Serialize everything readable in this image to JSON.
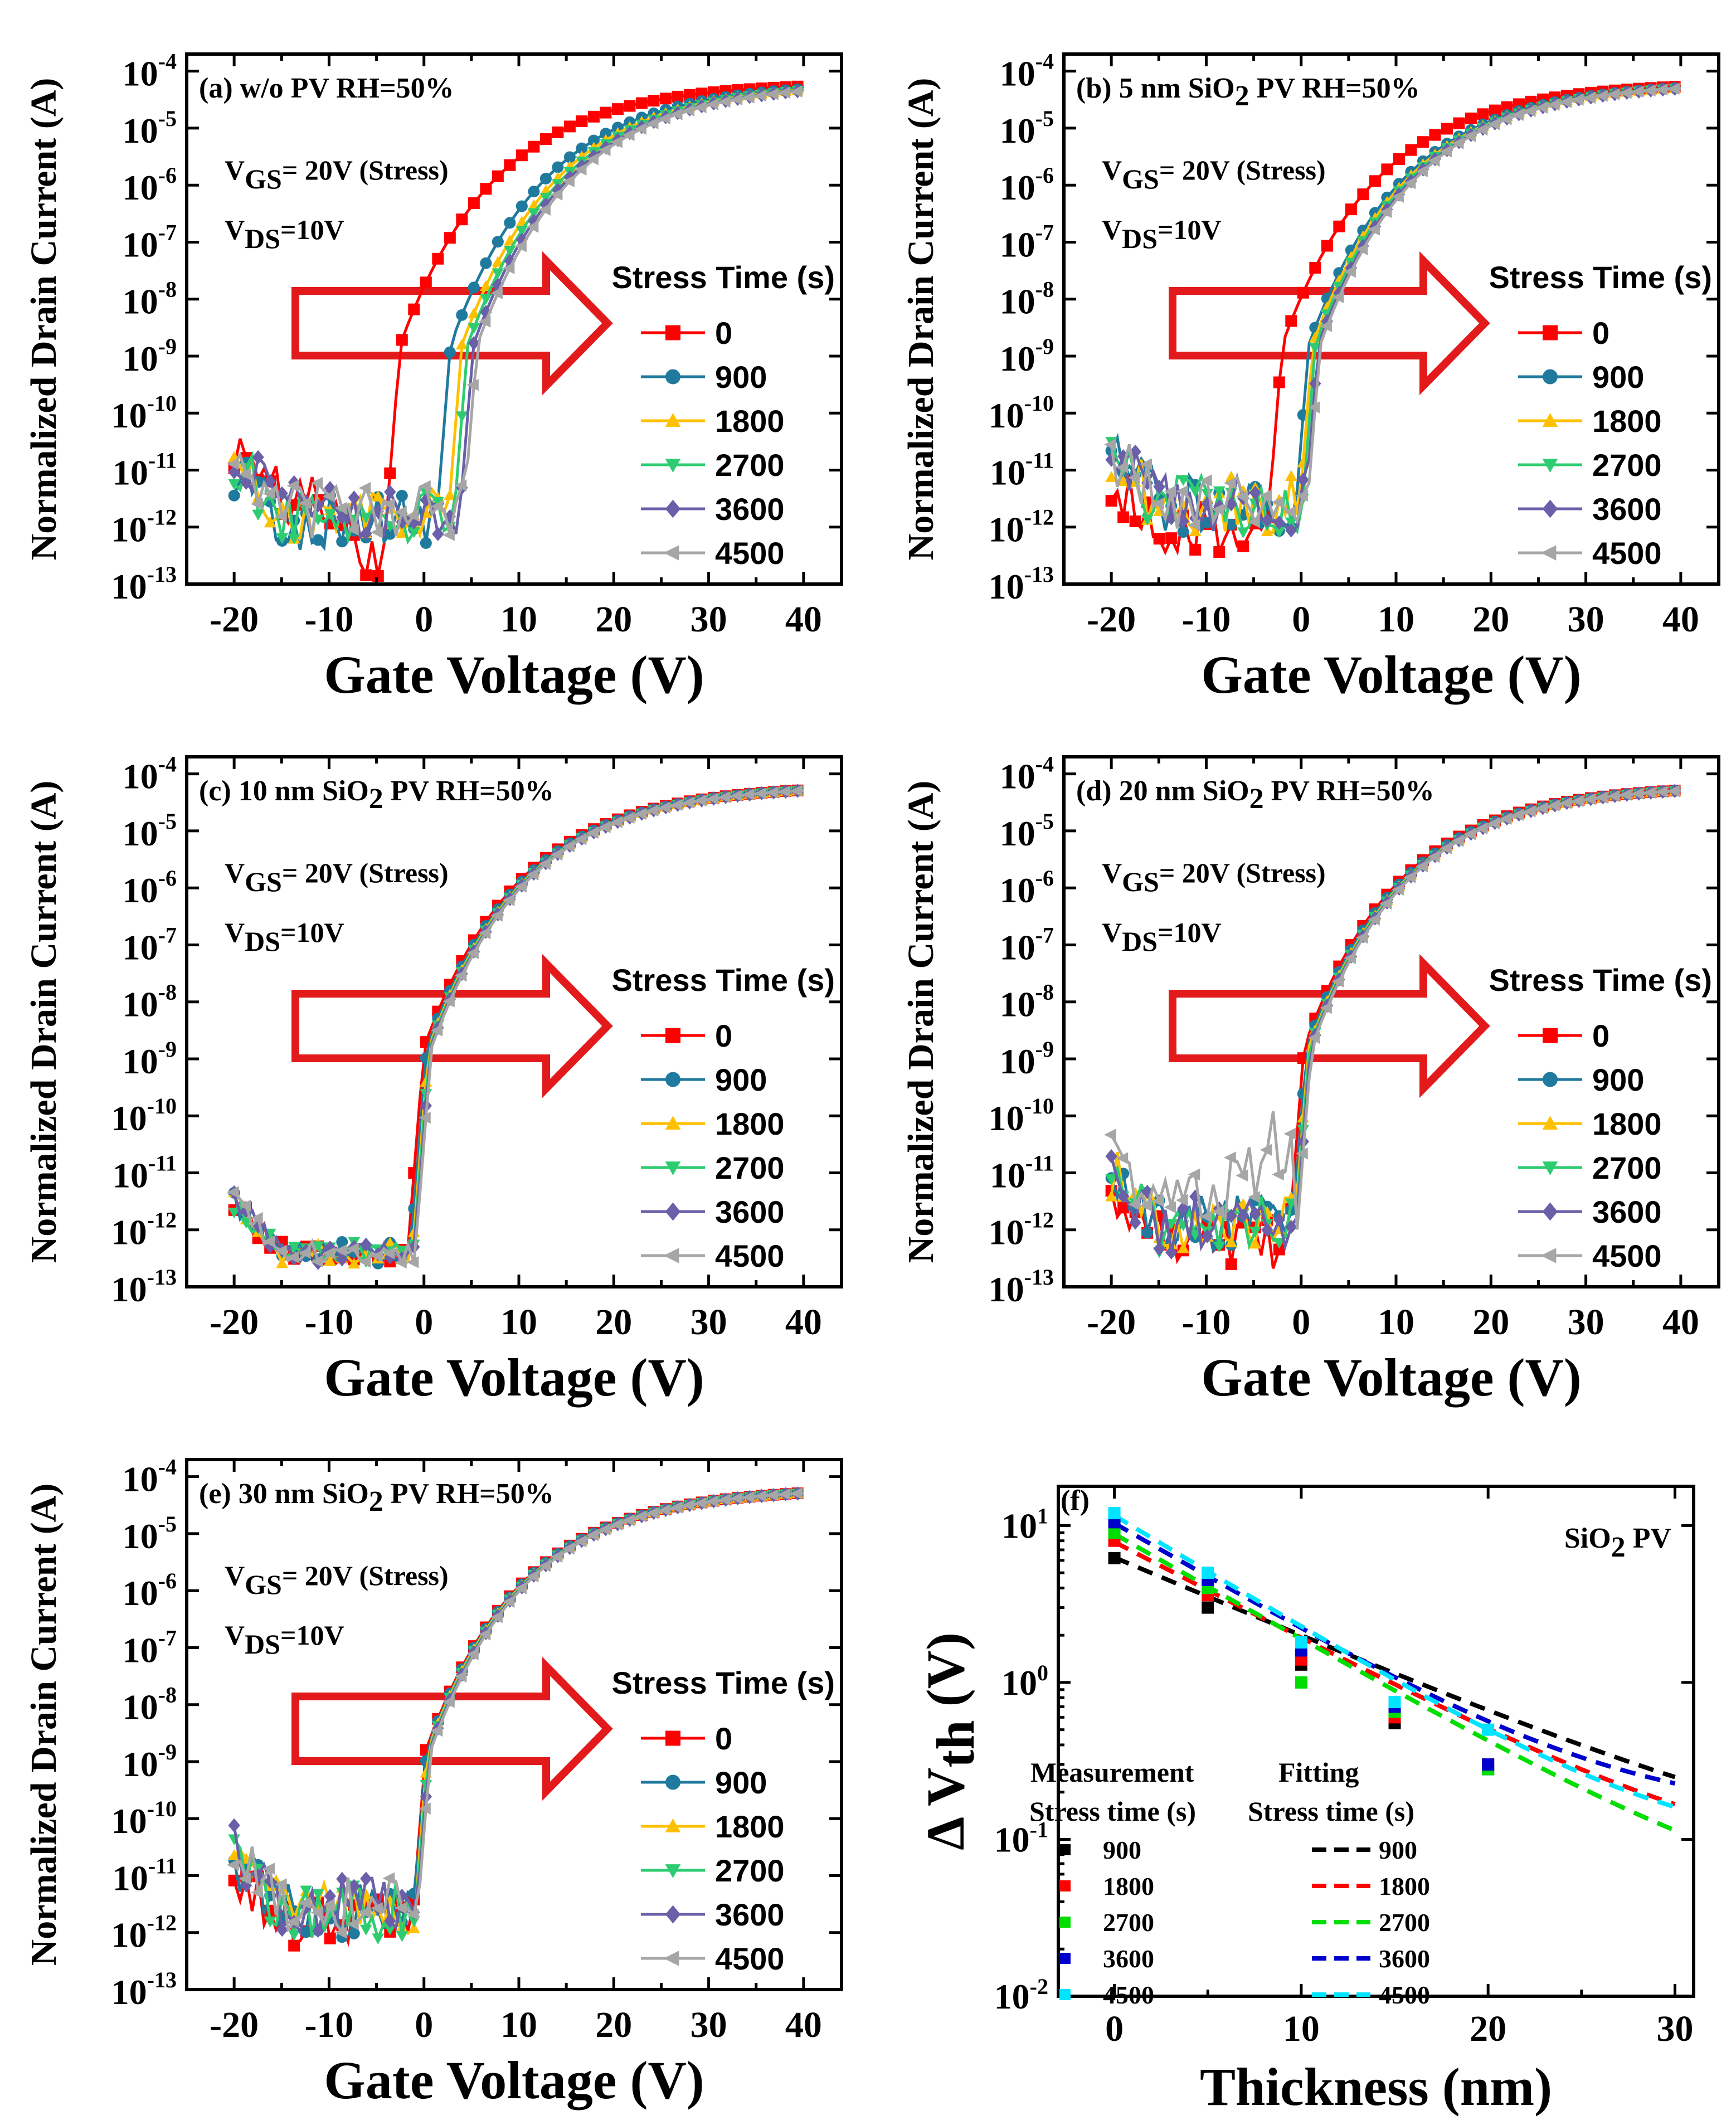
{
  "figure": {
    "y_axis_label": "Normalized Drain Current (A)",
    "x_axis_label": "Gate Voltage (V)",
    "legend_title": "Stress Time (s)",
    "vgs_base": "V",
    "vgs_sub": "GS",
    "vgs_rest": "= 20V (Stress)",
    "vds_base": "V",
    "vds_sub": "DS",
    "vds_rest": "=10V",
    "y_tick_base": "10",
    "series_colors": [
      "#ff0000",
      "#1f7a9e",
      "#ffc000",
      "#2ecc71",
      "#6a5fa8",
      "#a6a6a6"
    ],
    "arrow_color": "#e31a1c"
  },
  "chart_data": [
    {
      "type": "line",
      "panel": "(a)",
      "title_parts": [
        "w/o PV  RH=50%"
      ],
      "title": "(a) w/o PV  RH=50%",
      "xlabel": "Gate Voltage (V)",
      "ylabel": "Normalized Drain Current (A)",
      "y_scale": "log",
      "xlim": [
        -25,
        44
      ],
      "ylim_exp": [
        -13,
        -3.7
      ],
      "x_ticks": [
        "-20",
        "-10",
        "0",
        "10",
        "20",
        "30",
        "40"
      ],
      "y_tick_exponents": [
        "-4",
        "-5",
        "-6",
        "-7",
        "-8",
        "-9",
        "-10",
        "-11",
        "-12",
        "-13"
      ],
      "legend": [
        "0",
        "900",
        "1800",
        "2700",
        "3600",
        "4500"
      ],
      "series": [
        {
          "name": "0",
          "vth": -2.5,
          "offlog": -11.5
        },
        {
          "name": "900",
          "vth": 2.8,
          "offlog": -11.9
        },
        {
          "name": "1800",
          "vth": 4.0,
          "offlog": -11.8
        },
        {
          "name": "2700",
          "vth": 4.6,
          "offlog": -11.8
        },
        {
          "name": "3600",
          "vth": 5.2,
          "offlog": -11.7
        },
        {
          "name": "4500",
          "vth": 5.6,
          "offlog": -11.7
        }
      ]
    },
    {
      "type": "line",
      "panel": "(b)",
      "title_parts": [
        "5 nm SiO",
        "2",
        " PV  RH=50%"
      ],
      "title": "(b) 5 nm SiO2 PV  RH=50%",
      "xlabel": "Gate Voltage (V)",
      "ylabel": "Normalized Drain Current (A)",
      "y_scale": "log",
      "xlim": [
        -25,
        44
      ],
      "ylim_exp": [
        -13,
        -3.7
      ],
      "x_ticks": [
        "-20",
        "-10",
        "0",
        "10",
        "20",
        "30",
        "40"
      ],
      "y_tick_exponents": [
        "-4",
        "-5",
        "-6",
        "-7",
        "-8",
        "-9",
        "-10",
        "-11",
        "-12",
        "-13"
      ],
      "legend": [
        "0",
        "900",
        "1800",
        "2700",
        "3600",
        "4500"
      ],
      "series": [
        {
          "name": "0",
          "vth": -2.0,
          "offlog": -12.0
        },
        {
          "name": "900",
          "vth": 0.8,
          "offlog": -11.6
        },
        {
          "name": "1800",
          "vth": 1.2,
          "offlog": -11.6
        },
        {
          "name": "2700",
          "vth": 1.5,
          "offlog": -11.6
        },
        {
          "name": "3600",
          "vth": 1.8,
          "offlog": -11.6
        },
        {
          "name": "4500",
          "vth": 2.0,
          "offlog": -11.6
        }
      ]
    },
    {
      "type": "line",
      "panel": "(c)",
      "title_parts": [
        "10 nm SiO",
        "2",
        " PV  RH=50%"
      ],
      "title": "(c) 10 nm SiO2 PV  RH=50%",
      "xlabel": "Gate Voltage (V)",
      "ylabel": "Normalized Drain Current (A)",
      "y_scale": "log",
      "xlim": [
        -25,
        44
      ],
      "ylim_exp": [
        -13,
        -3.7
      ],
      "x_ticks": [
        "-20",
        "-10",
        "0",
        "10",
        "20",
        "30",
        "40"
      ],
      "y_tick_exponents": [
        "-4",
        "-5",
        "-6",
        "-7",
        "-8",
        "-9",
        "-10",
        "-11",
        "-12",
        "-13"
      ],
      "legend": [
        "0",
        "900",
        "1800",
        "2700",
        "3600",
        "4500"
      ],
      "series": [
        {
          "name": "0",
          "vth": 0.0,
          "offlog": -12.4
        },
        {
          "name": "900",
          "vth": 0.3,
          "offlog": -12.4
        },
        {
          "name": "1800",
          "vth": 0.5,
          "offlog": -12.4
        },
        {
          "name": "2700",
          "vth": 0.6,
          "offlog": -12.4
        },
        {
          "name": "3600",
          "vth": 0.7,
          "offlog": -12.4
        },
        {
          "name": "4500",
          "vth": 0.8,
          "offlog": -12.4
        }
      ]
    },
    {
      "type": "line",
      "panel": "(d)",
      "title_parts": [
        "20 nm SiO",
        "2",
        " PV  RH=50%"
      ],
      "title": "(d) 20 nm SiO2 PV  RH=50%",
      "xlabel": "Gate Voltage (V)",
      "ylabel": "Normalized Drain Current (A)",
      "y_scale": "log",
      "xlim": [
        -25,
        44
      ],
      "ylim_exp": [
        -13,
        -3.7
      ],
      "x_ticks": [
        "-20",
        "-10",
        "0",
        "10",
        "20",
        "30",
        "40"
      ],
      "y_tick_exponents": [
        "-4",
        "-5",
        "-6",
        "-7",
        "-8",
        "-9",
        "-10",
        "-11",
        "-12",
        "-13"
      ],
      "legend": [
        "0",
        "900",
        "1800",
        "2700",
        "3600",
        "4500"
      ],
      "series": [
        {
          "name": "0",
          "vth": 0.3,
          "offlog": -12.2
        },
        {
          "name": "900",
          "vth": 0.6,
          "offlog": -11.9
        },
        {
          "name": "1800",
          "vth": 0.8,
          "offlog": -11.9
        },
        {
          "name": "2700",
          "vth": 0.9,
          "offlog": -11.9
        },
        {
          "name": "3600",
          "vth": 1.0,
          "offlog": -11.9
        },
        {
          "name": "4500",
          "vth": 1.1,
          "offlog": -11.5
        }
      ]
    },
    {
      "type": "line",
      "panel": "(e)",
      "title_parts": [
        "30 nm SiO",
        "2",
        " PV RH=50%"
      ],
      "title": "(e) 30 nm SiO2 PV RH=50%",
      "xlabel": "Gate Voltage (V)",
      "ylabel": "Normalized Drain Current (A)",
      "y_scale": "log",
      "xlim": [
        -25,
        44
      ],
      "ylim_exp": [
        -13,
        -3.7
      ],
      "x_ticks": [
        "-20",
        "-10",
        "0",
        "10",
        "20",
        "30",
        "40"
      ],
      "y_tick_exponents": [
        "-4",
        "-5",
        "-6",
        "-7",
        "-8",
        "-9",
        "-10",
        "-11",
        "-12",
        "-13"
      ],
      "legend": [
        "0",
        "900",
        "1800",
        "2700",
        "3600",
        "4500"
      ],
      "series": [
        {
          "name": "0",
          "vth": 0.2,
          "offlog": -11.8
        },
        {
          "name": "900",
          "vth": 0.3,
          "offlog": -11.6
        },
        {
          "name": "1800",
          "vth": 0.4,
          "offlog": -11.6
        },
        {
          "name": "2700",
          "vth": 0.5,
          "offlog": -11.6
        },
        {
          "name": "3600",
          "vth": 0.6,
          "offlog": -11.5
        },
        {
          "name": "4500",
          "vth": 0.7,
          "offlog": -11.5
        }
      ]
    },
    {
      "type": "scatter",
      "panel": "(f)",
      "title": "SiO2 PV",
      "title_base": "SiO",
      "title_sub": "2",
      "title_rest": " PV",
      "xlabel": "Thickness (nm)",
      "ylabel_delta": "Δ",
      "ylabel_v": "V",
      "ylabel_sub": "th",
      "ylabel_unit": " (V)",
      "y_scale": "log",
      "xlim": [
        -3,
        31
      ],
      "ylim_exp": [
        -2,
        1.25
      ],
      "x_ticks": [
        "0",
        "10",
        "20",
        "30"
      ],
      "x_tick_values": [
        0,
        10,
        20,
        30
      ],
      "y_tick_exponents": [
        "1",
        "0",
        "-1",
        "-2"
      ],
      "measurement_header": "Measurement",
      "fitting_header": "Fitting",
      "stress_header": "Stress time (s)",
      "measurement": [
        {
          "name": "900",
          "color": "#000000",
          "x": [
            0,
            5,
            10,
            15,
            20
          ],
          "y": [
            6.2,
            3.0,
            1.3,
            0.55,
            0.28
          ]
        },
        {
          "name": "1800",
          "color": "#ff0000",
          "x": [
            0,
            5,
            10,
            15,
            20
          ],
          "y": [
            8.0,
            3.6,
            1.4,
            0.6,
            0.3
          ]
        },
        {
          "name": "2700",
          "color": "#00dd00",
          "x": [
            0,
            5,
            10,
            15,
            20
          ],
          "y": [
            9.0,
            4.0,
            1.0,
            0.65,
            0.28
          ]
        },
        {
          "name": "3600",
          "color": "#0000cc",
          "x": [
            0,
            5,
            10,
            15,
            20
          ],
          "y": [
            10.5,
            4.5,
            1.6,
            0.7,
            0.3
          ]
        },
        {
          "name": "4500",
          "color": "#00e5ff",
          "x": [
            0,
            5,
            10,
            15,
            20
          ],
          "y": [
            12.0,
            5.0,
            1.8,
            0.75,
            0.5
          ]
        }
      ],
      "fitting": [
        {
          "name": "900",
          "color": "#000000",
          "y0": 6.2,
          "decay": 8.6,
          "floor": 0.06
        },
        {
          "name": "1800",
          "color": "#ff0000",
          "y0": 7.8,
          "decay": 7.0,
          "floor": 0.06
        },
        {
          "name": "2700",
          "color": "#00dd00",
          "y0": 8.8,
          "decay": 6.45,
          "floor": 0.03
        },
        {
          "name": "3600",
          "color": "#0000cc",
          "y0": 10.2,
          "decay": 6.3,
          "floor": 0.14
        },
        {
          "name": "4500",
          "color": "#00e5ff",
          "y0": 11.5,
          "decay": 6.05,
          "floor": 0.08
        }
      ]
    }
  ]
}
